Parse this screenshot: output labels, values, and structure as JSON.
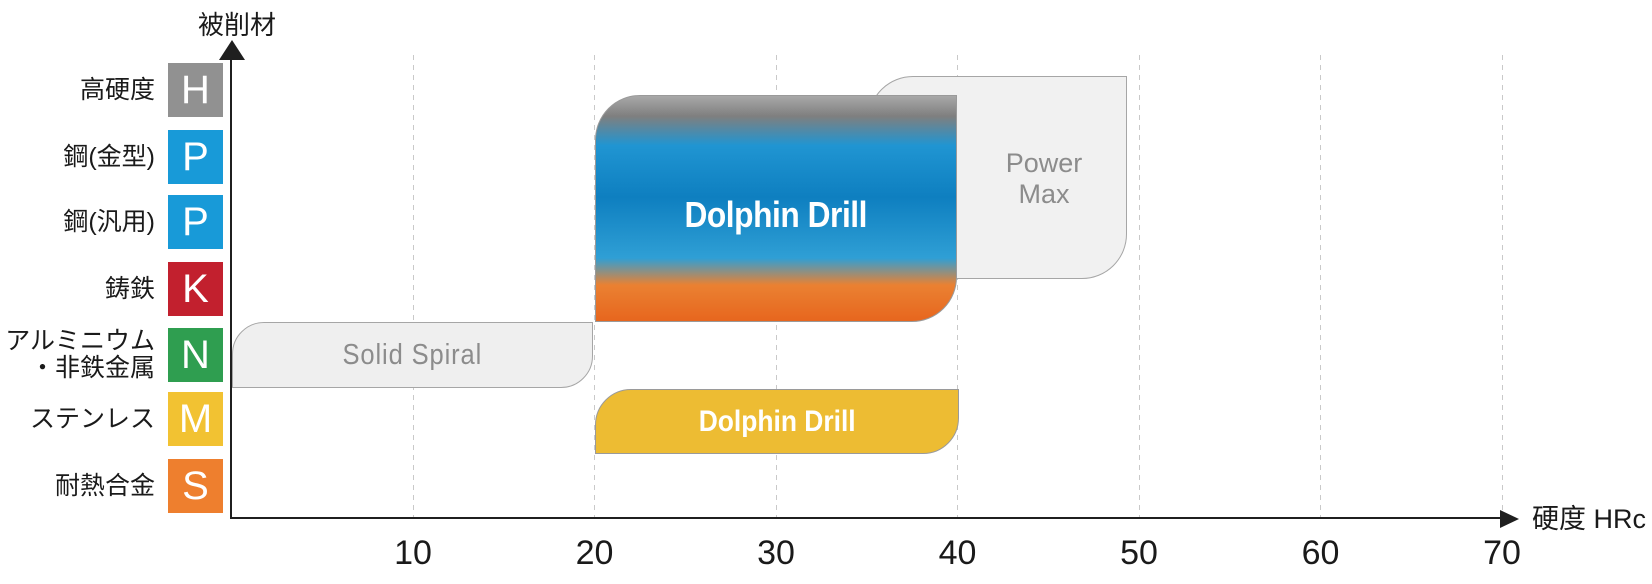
{
  "y_axis": {
    "title": "被削材",
    "rows": [
      {
        "label": "高硬度",
        "letter": "H",
        "color": "#919191"
      },
      {
        "label": "鋼(金型)",
        "letter": "P",
        "color": "#189ad8"
      },
      {
        "label": "鋼(汎用)",
        "letter": "P",
        "color": "#189ad8"
      },
      {
        "label": "鋳鉄",
        "letter": "K",
        "color": "#c2202e"
      },
      {
        "label": "アルミニウム\n・非鉄金属",
        "letter": "N",
        "color": "#2f9e50"
      },
      {
        "label": "ステンレス",
        "letter": "M",
        "color": "#f2c232"
      },
      {
        "label": "耐熱合金",
        "letter": "S",
        "color": "#ee7f2e"
      }
    ]
  },
  "x_axis": {
    "title": "硬度 HRc",
    "ticks": [
      10,
      20,
      30,
      40,
      50,
      60,
      70
    ]
  },
  "shapes": [
    {
      "id": "solid-spiral",
      "label": "Solid Spiral",
      "fill": "#efefef",
      "text_color": "#8c8c8c"
    },
    {
      "id": "dolphin-drill-main",
      "label": "Dolphin Drill",
      "text_color": "#ffffff",
      "gradient_stops": [
        [
          "#a8a8a8",
          0
        ],
        [
          "#7f7f7f",
          9
        ],
        [
          "#2095d2",
          22
        ],
        [
          "#0e7fc0",
          45
        ],
        [
          "#2f9fd5",
          72
        ],
        [
          "#ea8132",
          84
        ],
        [
          "#e7661e",
          100
        ]
      ]
    },
    {
      "id": "power-max",
      "label_line1": "Power",
      "label_line2": "Max",
      "fill": "#f1f1f1",
      "text_color": "#8c8c8c"
    },
    {
      "id": "dolphin-drill-stainless",
      "label": "Dolphin Drill",
      "fill": "#edbc33",
      "text_color": "#ffffff"
    }
  ],
  "chart_data": {
    "type": "bar",
    "subtype": "horizontal-range-coverage",
    "title": "",
    "xlabel": "硬度 HRc",
    "ylabel": "被削材",
    "x_range": [
      0,
      70
    ],
    "x_ticks": [
      10,
      20,
      30,
      40,
      50,
      60,
      70
    ],
    "grid": "dashed-vertical",
    "legend": "none",
    "categories": [
      "高硬度 (H)",
      "鋼(金型) (P)",
      "鋼(汎用) (P)",
      "鋳鉄 (K)",
      "アルミニウム・非鉄金属 (N)",
      "ステンレス (M)",
      "耐熱合金 (S)"
    ],
    "series": [
      {
        "name": "Solid Spiral",
        "hardness_range_hrc": [
          0,
          20
        ],
        "materials": [
          "N"
        ],
        "fill": "#efefef"
      },
      {
        "name": "Dolphin Drill",
        "hardness_range_hrc": [
          20,
          40
        ],
        "materials": [
          "H",
          "P",
          "P",
          "K"
        ],
        "fill": "gradient gray-blue-orange"
      },
      {
        "name": "Power Max",
        "hardness_range_hrc": [
          35,
          49
        ],
        "materials": [
          "H",
          "P",
          "P",
          "K"
        ],
        "fill": "#f1f1f1"
      },
      {
        "name": "Dolphin Drill",
        "hardness_range_hrc": [
          20,
          40
        ],
        "materials": [
          "M"
        ],
        "fill": "#edbc33"
      }
    ]
  }
}
